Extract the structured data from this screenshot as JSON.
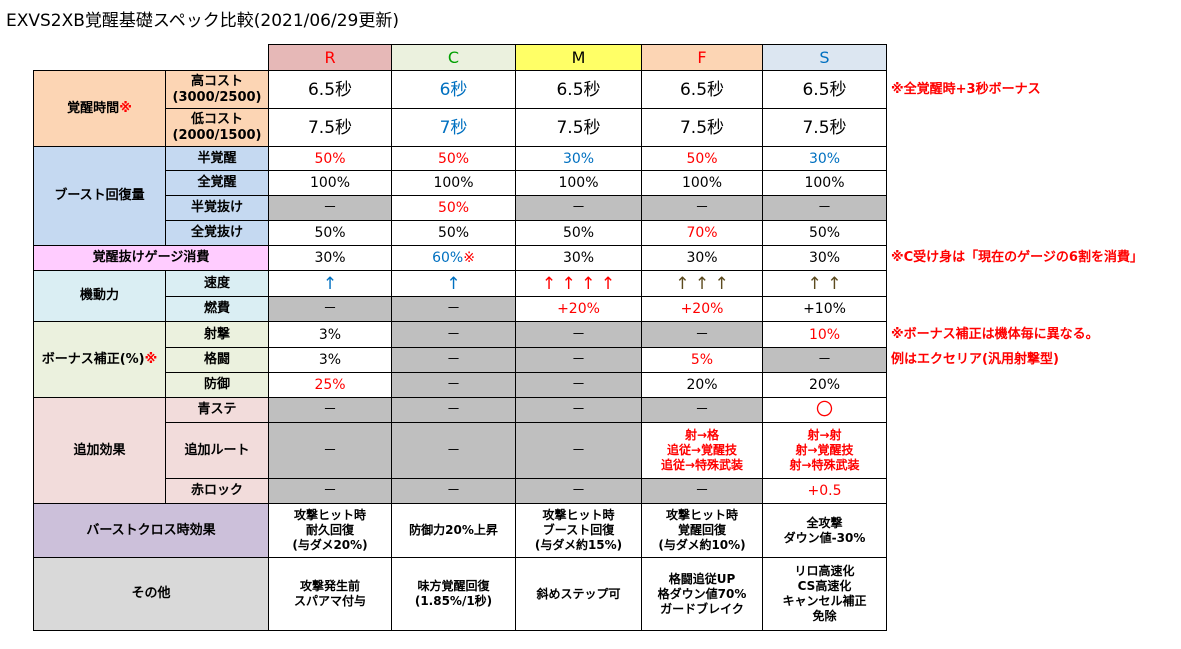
{
  "title": "EXVS2XB覚醒基礎スペック比較(2021/06/29更新)",
  "header": [
    "R",
    "C",
    "M",
    "F",
    "S"
  ],
  "groups": [
    {
      "label": "覚醒時間",
      "mark": "※",
      "rows": [
        {
          "label": "高コスト",
          "sublabel": "(3000/2500)",
          "cells": [
            "6.5秒",
            "6秒",
            "6.5秒",
            "6.5秒",
            "6.5秒"
          ],
          "note": "※全覚醒時+3秒ボーナス"
        },
        {
          "label": "低コスト",
          "sublabel": "(2000/1500)",
          "cells": [
            "7.5秒",
            "7秒",
            "7.5秒",
            "7.5秒",
            "7.5秒"
          ]
        }
      ]
    },
    {
      "label": "ブースト回復量",
      "rows": [
        {
          "label": "半覚醒",
          "cells": [
            "50%",
            "50%",
            "30%",
            "50%",
            "30%"
          ]
        },
        {
          "label": "全覚醒",
          "cells": [
            "100%",
            "100%",
            "100%",
            "100%",
            "100%"
          ]
        },
        {
          "label": "半覚抜け",
          "cells": [
            "－",
            "50%",
            "－",
            "－",
            "－"
          ]
        },
        {
          "label": "全覚抜け",
          "cells": [
            "50%",
            "50%",
            "50%",
            "70%",
            "50%"
          ]
        }
      ]
    },
    {
      "label": "覚醒抜けゲージ消費",
      "rows": [
        {
          "cells": [
            "30%",
            "60%",
            "30%",
            "30%",
            "30%"
          ],
          "mark": "※",
          "note": "※C受け身は「現在のゲージの6割を消費」"
        }
      ]
    },
    {
      "label": "機動力",
      "rows": [
        {
          "label": "速度",
          "cells": [
            "↑",
            "↑",
            "↑ ↑ ↑ ↑",
            "↑ ↑ ↑",
            "↑ ↑"
          ]
        },
        {
          "label": "燃費",
          "cells": [
            "－",
            "－",
            "+20%",
            "+20%",
            "+10%"
          ]
        }
      ]
    },
    {
      "label": "ボーナス補正(%)",
      "mark": "※",
      "rows": [
        {
          "label": "射撃",
          "cells": [
            "3%",
            "－",
            "－",
            "－",
            "10%"
          ],
          "note": "※ボーナス補正は機体毎に異なる。"
        },
        {
          "label": "格闘",
          "cells": [
            "3%",
            "－",
            "－",
            "5%",
            "－"
          ],
          "note": "例はエクセリア(汎用射撃型)"
        },
        {
          "label": "防御",
          "cells": [
            "25%",
            "－",
            "－",
            "20%",
            "20%"
          ]
        }
      ]
    },
    {
      "label": "追加効果",
      "rows": [
        {
          "label": "青ステ",
          "cells": [
            "－",
            "－",
            "－",
            "－",
            "〇"
          ]
        },
        {
          "label": "追加ルート",
          "cells": [
            "－",
            "－",
            "－",
            [
              "射→格",
              "追従→覚醒技",
              "追従→特殊武装"
            ],
            [
              "射→射",
              "射→覚醒技",
              "射→特殊武装"
            ]
          ]
        },
        {
          "label": "赤ロック",
          "cells": [
            "－",
            "－",
            "－",
            "－",
            "+0.5"
          ]
        }
      ]
    },
    {
      "label": "バーストクロス時効果",
      "rows": [
        {
          "cells": [
            [
              "攻撃ヒット時",
              "耐久回復",
              "(与ダメ20%)"
            ],
            [
              "防御力20%上昇"
            ],
            [
              "攻撃ヒット時",
              "ブースト回復",
              "(与ダメ約15%)"
            ],
            [
              "攻撃ヒット時",
              "覚醒回復",
              "(与ダメ約10%)"
            ],
            [
              "全攻撃",
              "ダウン値-30%"
            ]
          ]
        }
      ]
    },
    {
      "label": "その他",
      "rows": [
        {
          "cells": [
            [
              "攻撃発生前",
              "スパアマ付与"
            ],
            [
              "味方覚醒回復",
              "(1.85%/1秒)"
            ],
            [
              "斜めステップ可"
            ],
            [
              "格闘追従UP",
              "格ダウン値70%",
              "ガードブレイク"
            ],
            [
              "リロ高速化",
              "CS高速化",
              "キャンセル補正",
              "免除"
            ]
          ]
        }
      ]
    }
  ]
}
